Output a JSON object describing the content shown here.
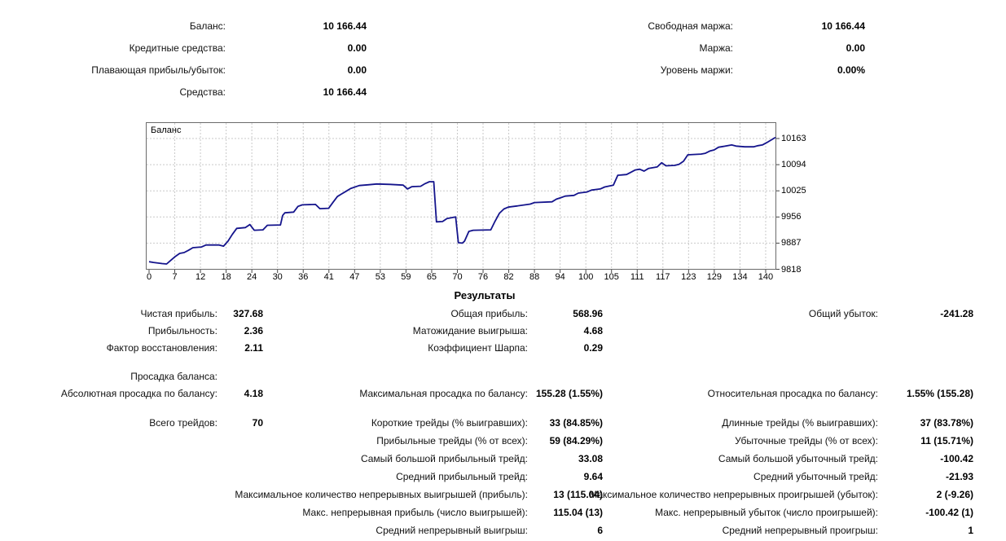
{
  "account_summary": {
    "left": [
      {
        "label": "Баланс:",
        "value": "10 166.44"
      },
      {
        "label": "Кредитные средства:",
        "value": "0.00"
      },
      {
        "label": "Плавающая прибыль/убыток:",
        "value": "0.00"
      },
      {
        "label": "Средства:",
        "value": "10 166.44"
      }
    ],
    "right": [
      {
        "label": "Свободная маржа:",
        "value": "10 166.44"
      },
      {
        "label": "Маржа:",
        "value": "0.00"
      },
      {
        "label": "Уровень маржи:",
        "value": "0.00%"
      }
    ]
  },
  "chart_data": {
    "type": "line",
    "title": "Баланс",
    "legend_position": "top-left",
    "grid": true,
    "line_color": "#14148c",
    "grid_color": "#c9c9c9",
    "border_color": "#6b6b6b",
    "xlim": [
      0,
      143
    ],
    "ylim": [
      9818,
      10212
    ],
    "x_ticks": [
      0,
      7,
      12,
      18,
      24,
      30,
      36,
      41,
      47,
      53,
      59,
      65,
      70,
      76,
      82,
      88,
      94,
      100,
      105,
      111,
      117,
      123,
      129,
      134,
      140
    ],
    "y_ticks": [
      9818,
      9887,
      9956,
      10025,
      10094,
      10163
    ],
    "series": [
      {
        "name": "Баланс",
        "points": [
          [
            0,
            9838
          ],
          [
            1,
            9836
          ],
          [
            3,
            9833
          ],
          [
            4,
            9832
          ],
          [
            5,
            9842
          ],
          [
            6,
            9852
          ],
          [
            7,
            9860
          ],
          [
            8,
            9862
          ],
          [
            9,
            9868
          ],
          [
            10,
            9875
          ],
          [
            12,
            9877
          ],
          [
            13,
            9882
          ],
          [
            16,
            9882
          ],
          [
            17,
            9879
          ],
          [
            18,
            9892
          ],
          [
            19,
            9910
          ],
          [
            20,
            9926
          ],
          [
            22,
            9928
          ],
          [
            23,
            9936
          ],
          [
            24,
            9921
          ],
          [
            26,
            9922
          ],
          [
            27,
            9934
          ],
          [
            30,
            9935
          ],
          [
            30.5,
            9960
          ],
          [
            31,
            9967
          ],
          [
            33,
            9969
          ],
          [
            34,
            9984
          ],
          [
            35,
            9988
          ],
          [
            38,
            9989
          ],
          [
            39,
            9978
          ],
          [
            41,
            9979
          ],
          [
            42,
            9995
          ],
          [
            43,
            10010
          ],
          [
            44,
            10017
          ],
          [
            45,
            10024
          ],
          [
            46,
            10031
          ],
          [
            48,
            10039
          ],
          [
            50,
            10041
          ],
          [
            52,
            10043
          ],
          [
            55,
            10042
          ],
          [
            58,
            10040
          ],
          [
            59,
            10030
          ],
          [
            60,
            10036
          ],
          [
            62,
            10037
          ],
          [
            63,
            10044
          ],
          [
            64,
            10049
          ],
          [
            65,
            10049
          ],
          [
            65.6,
            9943
          ],
          [
            67,
            9944
          ],
          [
            68,
            9952
          ],
          [
            70,
            9956
          ],
          [
            70.6,
            9888
          ],
          [
            71.5,
            9887
          ],
          [
            72,
            9892
          ],
          [
            73,
            9918
          ],
          [
            74,
            9921
          ],
          [
            78,
            9922
          ],
          [
            79,
            9945
          ],
          [
            80,
            9966
          ],
          [
            81,
            9977
          ],
          [
            82,
            9982
          ],
          [
            84,
            9985
          ],
          [
            87,
            9990
          ],
          [
            88,
            9994
          ],
          [
            92,
            9996
          ],
          [
            93,
            10003
          ],
          [
            94,
            10007
          ],
          [
            95,
            10011
          ],
          [
            97,
            10013
          ],
          [
            98,
            10019
          ],
          [
            100,
            10022
          ],
          [
            101,
            10027
          ],
          [
            103,
            10030
          ],
          [
            104,
            10035
          ],
          [
            106,
            10040
          ],
          [
            107,
            10066
          ],
          [
            109,
            10068
          ],
          [
            110,
            10074
          ],
          [
            111,
            10080
          ],
          [
            112,
            10082
          ],
          [
            113,
            10077
          ],
          [
            114,
            10084
          ],
          [
            116,
            10088
          ],
          [
            117,
            10099
          ],
          [
            118,
            10091
          ],
          [
            120,
            10092
          ],
          [
            121,
            10095
          ],
          [
            122,
            10103
          ],
          [
            123,
            10120
          ],
          [
            126,
            10122
          ],
          [
            127,
            10124
          ],
          [
            128,
            10130
          ],
          [
            129,
            10133
          ],
          [
            130,
            10140
          ],
          [
            131,
            10142
          ],
          [
            133,
            10146
          ],
          [
            134,
            10143
          ],
          [
            136,
            10141
          ],
          [
            138,
            10141
          ],
          [
            139,
            10144
          ],
          [
            140,
            10146
          ],
          [
            141,
            10152
          ],
          [
            142,
            10159
          ],
          [
            143,
            10166
          ]
        ]
      }
    ]
  },
  "results": {
    "heading": "Результаты",
    "blocks": [
      {
        "rows": [
          [
            {
              "col": 1,
              "label": "Чистая прибыль:",
              "value": "327.68"
            },
            {
              "col": 2,
              "label": "Общая прибыль:",
              "value": "568.96"
            },
            {
              "col": 3,
              "label": "Общий убыток:",
              "value": "-241.28"
            }
          ],
          [
            {
              "col": 1,
              "label": "Прибыльность:",
              "value": "2.36"
            },
            {
              "col": 2,
              "label": "Матожидание выигрыша:",
              "value": "4.68"
            }
          ],
          [
            {
              "col": 1,
              "label": "Фактор восстановления:",
              "value": "2.11"
            },
            {
              "col": 2,
              "label": "Коэффициент Шарпа:",
              "value": "0.29"
            }
          ]
        ]
      },
      {
        "rows": [
          [
            {
              "col": 1,
              "label": "Просадка баланса:",
              "value": ""
            }
          ],
          [
            {
              "col": 1,
              "label": "Абсолютная просадка по балансу:",
              "value": "4.18"
            },
            {
              "col": 2,
              "label": "Максимальная просадка по балансу:",
              "value": "155.28 (1.55%)"
            },
            {
              "col": 3,
              "label": "Относительная просадка по балансу:",
              "value": "1.55% (155.28)"
            }
          ]
        ]
      },
      {
        "rows": [
          [
            {
              "col": 1,
              "label": "Всего трейдов:",
              "value": "70"
            },
            {
              "col": 2,
              "label": "Короткие трейды (% выигравших):",
              "value": "33 (84.85%)"
            },
            {
              "col": 3,
              "label": "Длинные трейды (% выигравших):",
              "value": "37 (83.78%)"
            }
          ],
          [
            {
              "col": 2,
              "label": "Прибыльные трейды (% от всех):",
              "value": "59 (84.29%)"
            },
            {
              "col": 3,
              "label": "Убыточные трейды (% от всех):",
              "value": "11 (15.71%)"
            }
          ],
          [
            {
              "col": 2,
              "label": "Самый большой прибыльный трейд:",
              "value": "33.08"
            },
            {
              "col": 3,
              "label": "Самый большой убыточный трейд:",
              "value": "-100.42"
            }
          ],
          [
            {
              "col": 2,
              "label": "Средний прибыльный трейд:",
              "value": "9.64"
            },
            {
              "col": 3,
              "label": "Средний убыточный трейд:",
              "value": "-21.93"
            }
          ],
          [
            {
              "col": 2,
              "label": "Максимальное количество непрерывных выигрышей (прибыль):",
              "value": "13 (115.04)"
            },
            {
              "col": 3,
              "label": "Максимальное количество непрерывных проигрышей (убыток):",
              "value": "2 (-9.26)"
            }
          ],
          [
            {
              "col": 2,
              "label": "Макс. непрерывная прибыль (число выигрышей):",
              "value": "115.04 (13)"
            },
            {
              "col": 3,
              "label": "Макс. непрерывный убыток (число проигрышей):",
              "value": "-100.42 (1)"
            }
          ],
          [
            {
              "col": 2,
              "label": "Средний непрерывный выигрыш:",
              "value": "6"
            },
            {
              "col": 3,
              "label": "Средний непрерывный проигрыш:",
              "value": "1"
            }
          ]
        ]
      }
    ]
  }
}
